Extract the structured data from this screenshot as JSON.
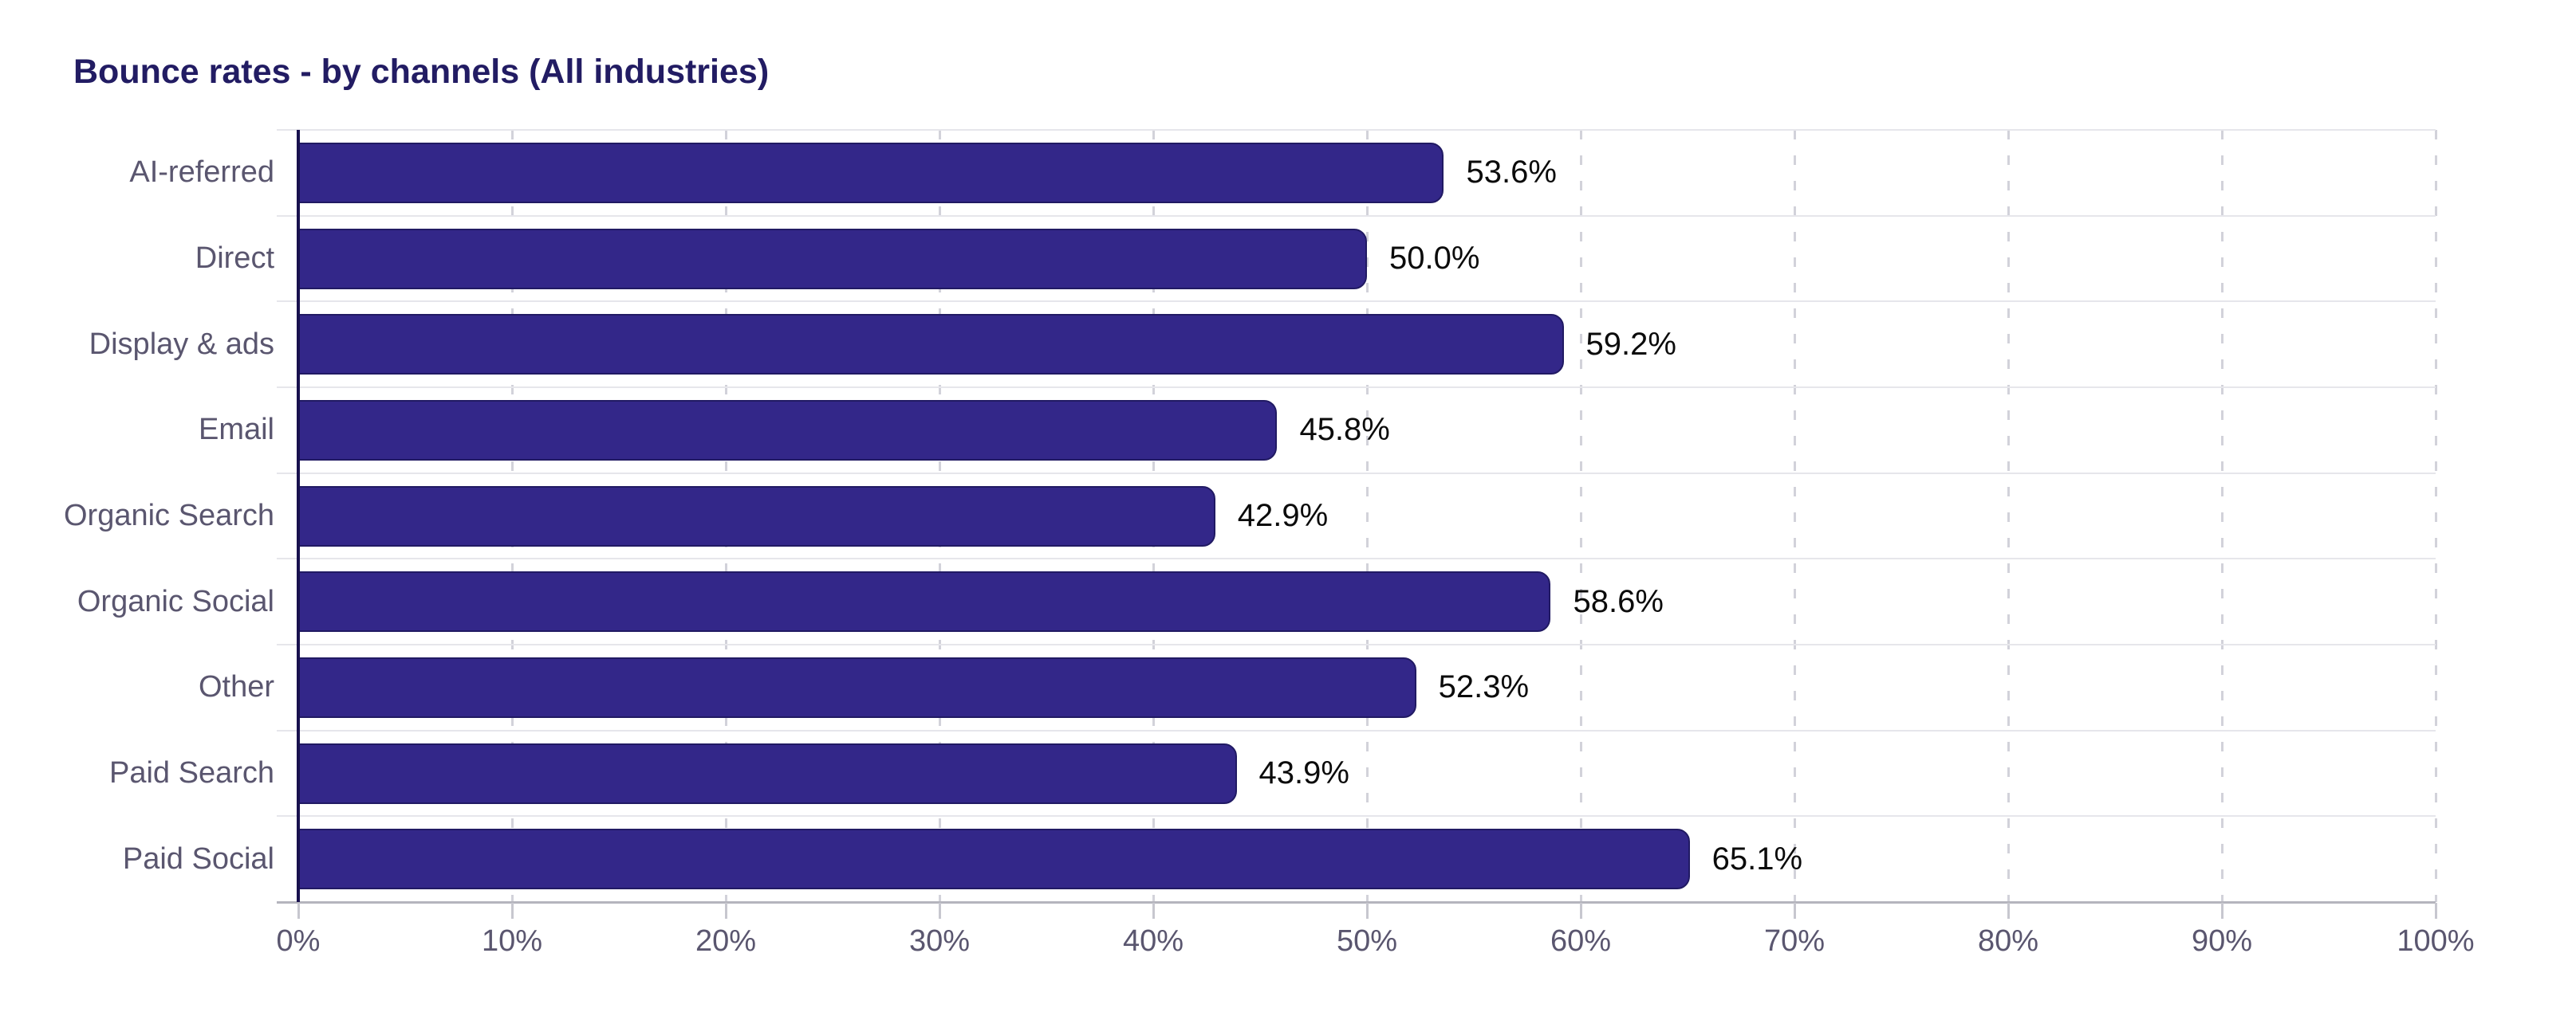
{
  "title": "Bounce rates - by channels (All industries)",
  "colors": {
    "background": "#ffffff",
    "title": "#221c63",
    "bar_fill": "#332789",
    "bar_border": "#211a63",
    "value_label": "#0b0b0b",
    "axis_label": "#5a566f",
    "grid_horizontal": "#e6e6eb",
    "grid_vertical_dashed": "#d2d2da",
    "x_axis_line": "#b5b5bd",
    "x_tick": "#c7c7cf",
    "zero_axis_line": "#18114e"
  },
  "chart_data": {
    "type": "bar",
    "orientation": "horizontal",
    "title": "Bounce rates - by channels (All industries)",
    "categories": [
      "AI-referred",
      "Direct",
      "Display & ads",
      "Email",
      "Organic Search",
      "Organic Social",
      "Other",
      "Paid Search",
      "Paid Social"
    ],
    "values": [
      53.6,
      50.0,
      59.2,
      45.8,
      42.9,
      58.6,
      52.3,
      43.9,
      65.1
    ],
    "value_labels": [
      "53.6%",
      "50.0%",
      "59.2%",
      "45.8%",
      "42.9%",
      "58.6%",
      "52.3%",
      "43.9%",
      "65.1%"
    ],
    "xlabel": "",
    "ylabel": "",
    "xlim": [
      0,
      100
    ],
    "x_tick_values": [
      0,
      10,
      20,
      30,
      40,
      50,
      60,
      70,
      80,
      90,
      100
    ],
    "x_ticks": [
      "0%",
      "10%",
      "20%",
      "30%",
      "40%",
      "50%",
      "60%",
      "70%",
      "80%",
      "90%",
      "100%"
    ],
    "grid": "vertical-dashed",
    "legend": "none"
  }
}
